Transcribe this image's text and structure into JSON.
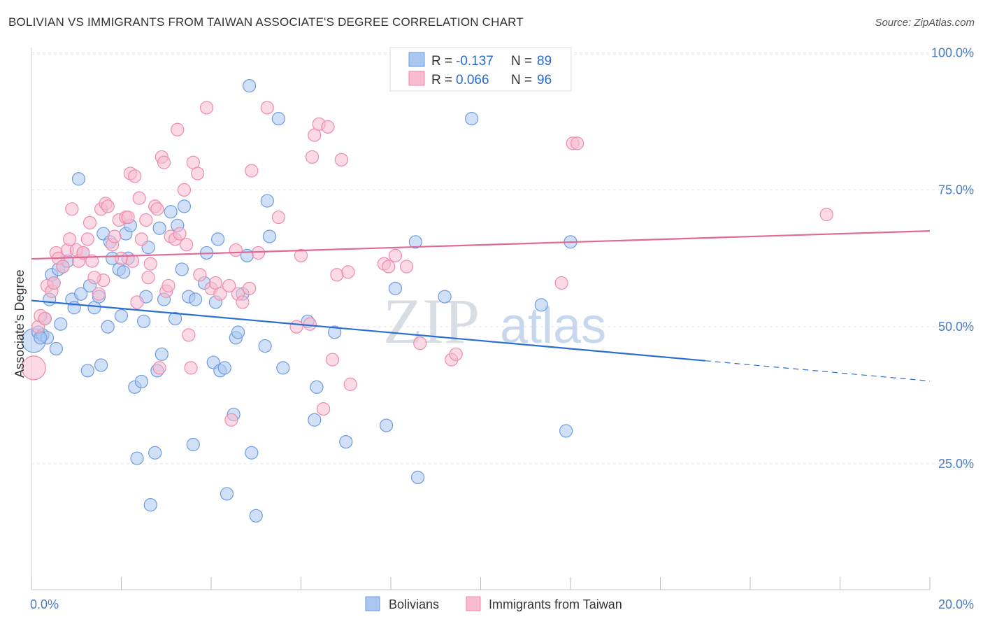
{
  "title": "BOLIVIAN VS IMMIGRANTS FROM TAIWAN ASSOCIATE'S DEGREE CORRELATION CHART",
  "source": "Source: ZipAtlas.com",
  "watermark": {
    "zip": "ZIP",
    "atlas": "atlas"
  },
  "chart_data": {
    "type": "scatter",
    "title": "BOLIVIAN VS IMMIGRANTS FROM TAIWAN ASSOCIATE'S DEGREE CORRELATION CHART",
    "xlabel": "",
    "ylabel": "Associate's Degree",
    "xlim": [
      0,
      20
    ],
    "ylim": [
      2,
      102
    ],
    "x_tick_labels": {
      "left": "0.0%",
      "right": "20.0%"
    },
    "y_ticks": [
      {
        "value": 25,
        "label": "25.0%"
      },
      {
        "value": 50,
        "label": "50.0%"
      },
      {
        "value": 75,
        "label": "75.0%"
      },
      {
        "value": 100,
        "label": "100.0%"
      }
    ],
    "grid": true,
    "legend_position": "top-center",
    "legend": [
      {
        "r_label": "R = ",
        "r_value": "-0.137",
        "n_label": "N = ",
        "n_value": "89"
      },
      {
        "r_label": "R = ",
        "r_value": "0.066",
        "n_label": "N = ",
        "n_value": "96"
      }
    ],
    "series": [
      {
        "name": "Bolivians",
        "color": "#6f9be0",
        "fill": "#aac7f0",
        "trend": {
          "x0": 0,
          "y0": 54.8,
          "x1": 15,
          "y1": 43.8,
          "dash_to_x": 20,
          "dash_to_y": 40.1,
          "color": "#2a6fd0"
        },
        "points": [
          [
            0.05,
            47.5
          ],
          [
            0.15,
            49
          ],
          [
            0.25,
            48.5
          ],
          [
            0.3,
            51.5
          ],
          [
            0.35,
            48
          ],
          [
            0.4,
            55
          ],
          [
            0.45,
            59.5
          ],
          [
            0.5,
            58
          ],
          [
            0.55,
            46
          ],
          [
            0.6,
            60.5
          ],
          [
            0.65,
            50.5
          ],
          [
            0.7,
            61
          ],
          [
            0.9,
            55
          ],
          [
            0.95,
            53.5
          ],
          [
            1.1,
            56
          ],
          [
            1.15,
            63.5
          ],
          [
            1.3,
            57.5
          ],
          [
            1.4,
            53.5
          ],
          [
            1.5,
            55.5
          ],
          [
            1.55,
            43
          ],
          [
            1.6,
            67
          ],
          [
            1.7,
            50
          ],
          [
            1.75,
            65.5
          ],
          [
            1.8,
            62.5
          ],
          [
            1.95,
            60.5
          ],
          [
            2.0,
            52
          ],
          [
            2.1,
            67
          ],
          [
            2.15,
            62.5
          ],
          [
            2.2,
            68.5
          ],
          [
            2.3,
            39
          ],
          [
            2.35,
            26
          ],
          [
            2.45,
            40
          ],
          [
            2.5,
            51
          ],
          [
            2.55,
            55.5
          ],
          [
            2.6,
            64.5
          ],
          [
            2.65,
            17.5
          ],
          [
            2.75,
            27
          ],
          [
            2.8,
            42
          ],
          [
            2.85,
            68
          ],
          [
            2.95,
            55
          ],
          [
            3.1,
            71
          ],
          [
            3.2,
            51.5
          ],
          [
            3.25,
            68.5
          ],
          [
            3.35,
            60.5
          ],
          [
            3.5,
            55.5
          ],
          [
            3.6,
            28.5
          ],
          [
            3.65,
            55
          ],
          [
            3.85,
            58
          ],
          [
            3.9,
            63.5
          ],
          [
            4.05,
            43.5
          ],
          [
            4.1,
            54.5
          ],
          [
            4.15,
            66
          ],
          [
            4.2,
            42
          ],
          [
            4.3,
            42.5
          ],
          [
            4.35,
            19.5
          ],
          [
            4.5,
            34
          ],
          [
            4.55,
            48
          ],
          [
            4.6,
            49
          ],
          [
            4.7,
            56
          ],
          [
            4.8,
            63
          ],
          [
            4.85,
            94
          ],
          [
            4.9,
            27
          ],
          [
            5.0,
            15.5
          ],
          [
            5.2,
            46.5
          ],
          [
            5.25,
            73
          ],
          [
            5.3,
            66.5
          ],
          [
            5.5,
            88
          ],
          [
            5.6,
            42.5
          ],
          [
            6.15,
            51
          ],
          [
            6.3,
            33
          ],
          [
            6.35,
            39
          ],
          [
            6.75,
            49
          ],
          [
            7.0,
            29
          ],
          [
            7.9,
            32
          ],
          [
            8.1,
            57
          ],
          [
            8.55,
            65.5
          ],
          [
            8.6,
            22.5
          ],
          [
            9.2,
            55.5
          ],
          [
            9.8,
            88
          ],
          [
            11.35,
            54
          ],
          [
            11.9,
            31
          ],
          [
            12.0,
            65.5
          ],
          [
            1.05,
            77
          ],
          [
            0.8,
            62
          ],
          [
            2.05,
            60
          ],
          [
            3.4,
            72
          ],
          [
            1.25,
            42
          ],
          [
            0.2,
            48
          ],
          [
            2.9,
            45
          ]
        ]
      },
      {
        "name": "Immigrants from Taiwan",
        "color": "#f08aaa",
        "fill": "#f7bcd0",
        "trend": {
          "x0": 0,
          "y0": 62.4,
          "x1": 20,
          "y1": 67.5,
          "color": "#e06a94"
        },
        "points": [
          [
            0.05,
            42.5
          ],
          [
            0.15,
            50
          ],
          [
            0.2,
            52
          ],
          [
            0.3,
            51.5
          ],
          [
            0.35,
            57.5
          ],
          [
            0.45,
            56.5
          ],
          [
            0.5,
            58
          ],
          [
            0.55,
            63.5
          ],
          [
            0.6,
            62.5
          ],
          [
            0.7,
            61
          ],
          [
            0.8,
            64
          ],
          [
            0.85,
            66
          ],
          [
            0.9,
            71.5
          ],
          [
            1.0,
            64
          ],
          [
            1.05,
            62
          ],
          [
            1.15,
            63.5
          ],
          [
            1.25,
            66
          ],
          [
            1.3,
            69
          ],
          [
            1.35,
            62
          ],
          [
            1.5,
            56
          ],
          [
            1.55,
            71.5
          ],
          [
            1.6,
            58.5
          ],
          [
            1.65,
            72.5
          ],
          [
            1.7,
            72
          ],
          [
            1.8,
            65
          ],
          [
            1.85,
            66.5
          ],
          [
            1.95,
            69.5
          ],
          [
            2.0,
            62.5
          ],
          [
            2.1,
            70
          ],
          [
            2.15,
            70
          ],
          [
            2.2,
            78
          ],
          [
            2.25,
            62
          ],
          [
            2.3,
            77.5
          ],
          [
            2.35,
            54.5
          ],
          [
            2.4,
            73.5
          ],
          [
            2.45,
            66
          ],
          [
            2.55,
            69.5
          ],
          [
            2.6,
            59
          ],
          [
            2.65,
            61.5
          ],
          [
            2.75,
            72
          ],
          [
            2.8,
            71.5
          ],
          [
            2.85,
            42.5
          ],
          [
            2.9,
            81
          ],
          [
            2.95,
            80
          ],
          [
            3.0,
            56.5
          ],
          [
            3.05,
            57.5
          ],
          [
            3.1,
            66.5
          ],
          [
            3.2,
            66
          ],
          [
            3.25,
            86
          ],
          [
            3.3,
            67
          ],
          [
            3.4,
            75
          ],
          [
            3.45,
            65
          ],
          [
            3.5,
            48.5
          ],
          [
            3.55,
            42.5
          ],
          [
            3.6,
            80
          ],
          [
            3.7,
            78
          ],
          [
            3.75,
            59.5
          ],
          [
            3.9,
            90
          ],
          [
            4.0,
            57
          ],
          [
            4.1,
            58
          ],
          [
            4.2,
            56
          ],
          [
            4.4,
            57.5
          ],
          [
            4.45,
            33
          ],
          [
            4.55,
            64
          ],
          [
            4.6,
            56
          ],
          [
            4.7,
            54.5
          ],
          [
            4.85,
            57
          ],
          [
            4.9,
            78.5
          ],
          [
            5.05,
            63.5
          ],
          [
            5.25,
            90
          ],
          [
            5.5,
            70
          ],
          [
            5.9,
            50
          ],
          [
            6.0,
            63
          ],
          [
            6.2,
            50.5
          ],
          [
            6.25,
            81
          ],
          [
            6.3,
            85
          ],
          [
            6.4,
            87
          ],
          [
            6.5,
            35
          ],
          [
            6.6,
            86.5
          ],
          [
            6.7,
            44
          ],
          [
            6.8,
            59.5
          ],
          [
            6.9,
            80.5
          ],
          [
            7.05,
            60
          ],
          [
            7.1,
            39.5
          ],
          [
            7.85,
            61.5
          ],
          [
            7.95,
            61
          ],
          [
            8.1,
            63
          ],
          [
            8.35,
            61
          ],
          [
            8.65,
            47
          ],
          [
            9.35,
            44
          ],
          [
            9.45,
            45
          ],
          [
            11.8,
            58
          ],
          [
            12.05,
            83.5
          ],
          [
            12.15,
            83.5
          ],
          [
            17.7,
            70.5
          ],
          [
            1.4,
            59
          ]
        ]
      }
    ]
  }
}
